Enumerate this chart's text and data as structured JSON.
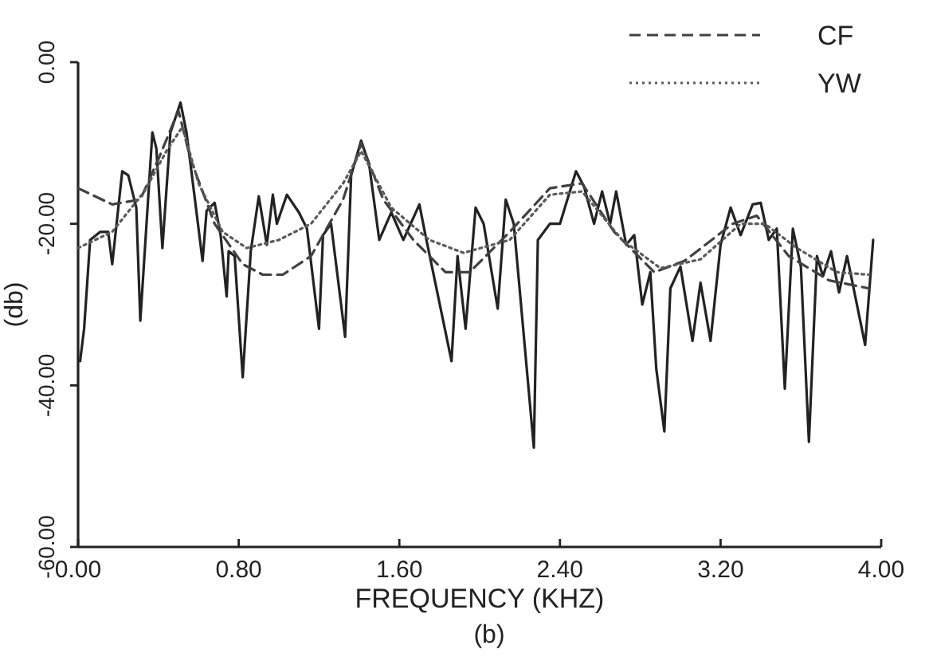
{
  "chart_data": {
    "type": "line",
    "xlabel": "FREQUENCY (KHZ)",
    "ylabel": "(db)",
    "annotations": [
      "(b)"
    ],
    "xlim": [
      0,
      4
    ],
    "xticks": [
      {
        "value": 0,
        "label": "0.00"
      },
      {
        "value": 0.8,
        "label": "0.80"
      },
      {
        "value": 1.6,
        "label": "1.60"
      },
      {
        "value": 2.4,
        "label": "2.40"
      },
      {
        "value": 3.2,
        "label": "3.20"
      },
      {
        "value": 4,
        "label": "4.00"
      }
    ],
    "ylim": [
      -60,
      0
    ],
    "yticks": [
      {
        "value": 0,
        "label": "0.00"
      },
      {
        "value": -20,
        "label": "-20.00"
      },
      {
        "value": -40,
        "label": "-40.00"
      },
      {
        "value": -60,
        "label": "-60.00"
      }
    ],
    "grid": false,
    "legend": "top right",
    "marker": "none",
    "series": [
      {
        "color": "#222222",
        "line_style": "solid",
        "x": [
          0.01,
          0.03,
          0.06,
          0.11,
          0.15,
          0.17,
          0.22,
          0.25,
          0.29,
          0.31,
          0.37,
          0.39,
          0.42,
          0.46,
          0.51,
          0.54,
          0.58,
          0.62,
          0.64,
          0.68,
          0.71,
          0.74,
          0.75,
          0.78,
          0.82,
          0.86,
          0.9,
          0.94,
          0.97,
          0.99,
          1.04,
          1.1,
          1.14,
          1.2,
          1.22,
          1.26,
          1.33,
          1.36,
          1.41,
          1.45,
          1.5,
          1.56,
          1.62,
          1.7,
          1.73,
          1.86,
          1.89,
          1.93,
          1.98,
          2.02,
          2.09,
          2.13,
          2.17,
          2.27,
          2.29,
          2.35,
          2.4,
          2.48,
          2.52,
          2.57,
          2.61,
          2.65,
          2.68,
          2.73,
          2.77,
          2.81,
          2.85,
          2.88,
          2.92,
          2.95,
          3.0,
          3.06,
          3.1,
          3.15,
          3.2,
          3.25,
          3.3,
          3.36,
          3.4,
          3.44,
          3.48,
          3.52,
          3.56,
          3.6,
          3.64,
          3.68,
          3.71,
          3.75,
          3.79,
          3.83,
          3.92,
          3.96
        ],
        "values": [
          -37,
          -33,
          -22,
          -21,
          -21,
          -25,
          -13.5,
          -14,
          -18,
          -32,
          -8.7,
          -10.7,
          -23,
          -8.7,
          -5,
          -8.7,
          -16.6,
          -24.6,
          -18.4,
          -17.4,
          -21.4,
          -29,
          -23.4,
          -24,
          -39,
          -23.4,
          -16.6,
          -22.6,
          -16.4,
          -20,
          -16.4,
          -18.6,
          -20.6,
          -33,
          -21.4,
          -20,
          -34,
          -14,
          -9.7,
          -12.7,
          -22,
          -18.6,
          -22,
          -17.6,
          -21.4,
          -37,
          -24,
          -33,
          -18,
          -20,
          -30.5,
          -17,
          -20,
          -47.7,
          -22,
          -20,
          -20,
          -13.5,
          -15.4,
          -20,
          -16,
          -20,
          -16,
          -22.6,
          -21.4,
          -30,
          -26,
          -38,
          -45.7,
          -28,
          -25.3,
          -34.5,
          -27.3,
          -34.5,
          -22.6,
          -18,
          -21.4,
          -17.6,
          -17.4,
          -22,
          -20.6,
          -40.4,
          -20.6,
          -25.3,
          -47,
          -24,
          -26.5,
          -23.4,
          -28.5,
          -24,
          -35,
          -22
        ]
      },
      {
        "name": "CF",
        "color": "#404040",
        "line_style": "dashed",
        "x": [
          0,
          0.17,
          0.31,
          0.4,
          0.5,
          0.56,
          0.68,
          0.82,
          0.92,
          1.02,
          1.16,
          1.32,
          1.41,
          1.52,
          1.67,
          1.83,
          1.95,
          2.15,
          2.35,
          2.51,
          2.67,
          2.87,
          3.02,
          3.26,
          3.38,
          3.54,
          3.74,
          3.94
        ],
        "values": [
          -15.6,
          -17.6,
          -17,
          -12,
          -6,
          -12,
          -20,
          -25,
          -26.3,
          -26.3,
          -24,
          -17,
          -10,
          -17,
          -22,
          -26,
          -26,
          -21,
          -15.6,
          -15,
          -21,
          -26,
          -24.6,
          -20,
          -19,
          -24,
          -27,
          -28
        ]
      },
      {
        "name": "YW",
        "color": "#5a5a5a",
        "line_style": "dotted",
        "x": [
          0,
          0.17,
          0.33,
          0.44,
          0.52,
          0.6,
          0.72,
          0.84,
          1.0,
          1.16,
          1.32,
          1.41,
          1.56,
          1.75,
          1.92,
          2.15,
          2.35,
          2.51,
          2.71,
          2.9,
          3.1,
          3.3,
          3.42,
          3.58,
          3.78,
          3.94
        ],
        "values": [
          -23,
          -21,
          -16,
          -11,
          -8,
          -15,
          -21,
          -23,
          -22,
          -20,
          -15,
          -11,
          -18,
          -22,
          -23.6,
          -22,
          -16.4,
          -16,
          -22,
          -25.5,
          -24.4,
          -20,
          -20,
          -23,
          -26,
          -26.3
        ]
      }
    ]
  }
}
